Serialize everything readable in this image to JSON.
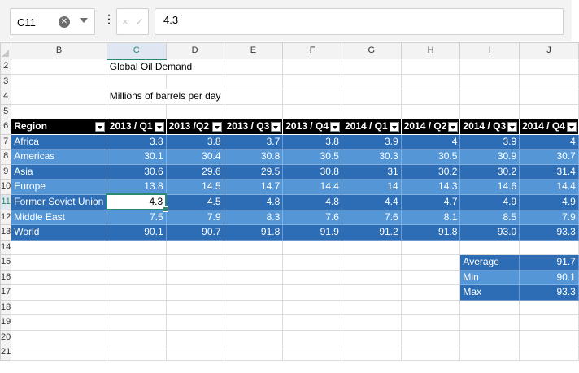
{
  "formula_bar": {
    "name_box": "C11",
    "clear_icon": "circle-x-icon",
    "cancel_label": "×",
    "confirm_label": "✓",
    "more_label": "⋮",
    "formula_value": "4.3"
  },
  "columns": [
    "B",
    "C",
    "D",
    "E",
    "F",
    "G",
    "H",
    "I",
    "J"
  ],
  "selected_column": "C",
  "rows": [
    "2",
    "3",
    "4",
    "5",
    "6",
    "7",
    "8",
    "9",
    "10",
    "11",
    "12",
    "13",
    "14",
    "15",
    "16",
    "17",
    "18",
    "19",
    "20",
    "21"
  ],
  "selected_row": "11",
  "title": "Global Oil Demand",
  "subtitle": "Millions of barrels per day",
  "table_headers": [
    "Region",
    "2013 / Q1",
    "2013 /Q2",
    "2013 / Q3",
    "2013 / Q4",
    "2014 / Q1",
    "2014 / Q2",
    "2014 / Q3",
    "2014 / Q4"
  ],
  "data_rows": [
    {
      "region": "Africa",
      "values": [
        "3.8",
        "3.8",
        "3.7",
        "3.8",
        "3.9",
        "4",
        "3.9",
        "4"
      ]
    },
    {
      "region": "Americas",
      "values": [
        "30.1",
        "30.4",
        "30.8",
        "30.5",
        "30.3",
        "30.5",
        "30.9",
        "30.7"
      ]
    },
    {
      "region": "Asia",
      "values": [
        "30.6",
        "29.6",
        "29.5",
        "30.8",
        "31",
        "30.2",
        "30.2",
        "31.4"
      ]
    },
    {
      "region": "Europe",
      "values": [
        "13.8",
        "14.5",
        "14.7",
        "14.4",
        "14",
        "14.3",
        "14.6",
        "14.4"
      ]
    },
    {
      "region": "Former Soviet Union",
      "values": [
        "4.3",
        "4.5",
        "4.8",
        "4.8",
        "4.4",
        "4.7",
        "4.9",
        "4.9"
      ]
    },
    {
      "region": "Middle East",
      "values": [
        "7.5",
        "7.9",
        "8.3",
        "7.6",
        "7.6",
        "8.1",
        "8.5",
        "7.9"
      ]
    },
    {
      "region": "World",
      "values": [
        "90.1",
        "90.7",
        "91.8",
        "91.9",
        "91.2",
        "91.8",
        "93.0",
        "93.3"
      ]
    }
  ],
  "stats": [
    {
      "label": "Average",
      "value": "91.7"
    },
    {
      "label": "Min",
      "value": "90.1"
    },
    {
      "label": "Max",
      "value": "93.3"
    }
  ],
  "colors": {
    "dark_band": "#2c6db5",
    "light_band": "#5596d6",
    "header_fill": "#000000",
    "selection": "#2a8a70"
  }
}
